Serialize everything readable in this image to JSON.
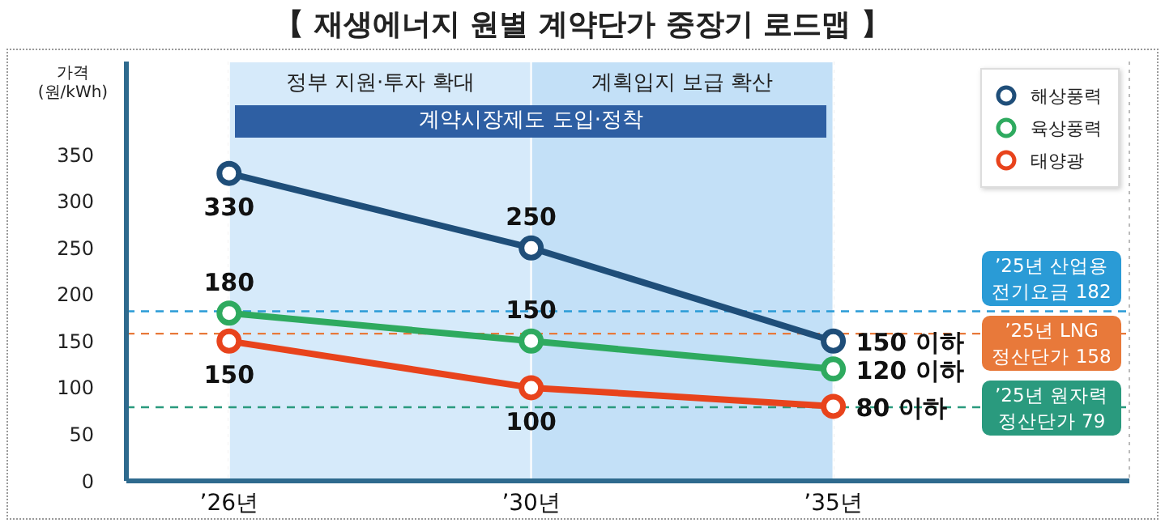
{
  "chart_data": {
    "type": "line",
    "title": "【 재생에너지 원별 계약단가 중장기 로드맵 】",
    "ylabel": "가격\n(원/kWh)",
    "categories": [
      "’26년",
      "’30년",
      "’35년"
    ],
    "ylim": [
      0,
      450
    ],
    "yticks": [
      0,
      50,
      100,
      150,
      200,
      250,
      300,
      350
    ],
    "grid": "x",
    "legend": "top right",
    "marker": "circle",
    "series": [
      {
        "name": "해상풍력",
        "color": "#1f4e79",
        "values": [
          330,
          250,
          150
        ],
        "value_labels": [
          "330",
          "250",
          "150 이하"
        ]
      },
      {
        "name": "육상풍력",
        "color": "#2eaa5f",
        "values": [
          180,
          150,
          120
        ],
        "value_labels": [
          "180",
          "150",
          "120 이하"
        ]
      },
      {
        "name": "태양광",
        "color": "#e8431c",
        "values": [
          150,
          100,
          80
        ],
        "value_labels": [
          "150",
          "100",
          "80 이하"
        ]
      }
    ],
    "bands": [
      {
        "axis": "x",
        "from": "’26년",
        "to": "’30년",
        "label": "정부 지원·투자 확대",
        "color": "#d6eafa"
      },
      {
        "axis": "x",
        "from": "’30년",
        "to": "’35년",
        "label": "계획입지 보급 확산",
        "color": "#c3e0f7"
      },
      {
        "axis": "x",
        "from": "’26년",
        "to": "’35년",
        "label": "계약시장제도 도입·정착",
        "color": "#2e5fa3"
      }
    ],
    "ref_lines": [
      {
        "axis": "y",
        "value": 182,
        "label": "’25년 산업용\n전기요금 182",
        "color": "#2a9bd6",
        "line_style": "dashed"
      },
      {
        "axis": "y",
        "value": 158,
        "label": "’25년 LNG\n정산단가 158",
        "color": "#e8793a",
        "line_style": "dashed"
      },
      {
        "axis": "y",
        "value": 79,
        "label": "’25년 원자력\n정산단가 79",
        "color": "#2a9a7e",
        "line_style": "dashed"
      }
    ]
  }
}
